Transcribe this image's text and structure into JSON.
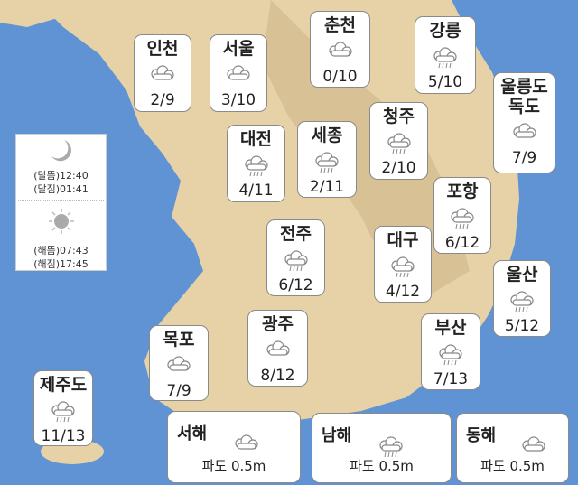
{
  "colors": {
    "sea": "#5f93d4",
    "land": "#e6d2a6",
    "land_dark": "#c9b183",
    "box": "#ffffff"
  },
  "astro": {
    "moon_icon": "crescent-moon-icon",
    "moonrise": "(달뜸)12:40",
    "moonset": "(달짐)01:41",
    "sun_icon": "sun-icon",
    "sunrise": "(해뜸)07:43",
    "sunset": "(해짐)17:45"
  },
  "cities": [
    {
      "name": "인천",
      "icon": "cloudy",
      "temp": "2/9"
    },
    {
      "name": "서울",
      "icon": "cloudy",
      "temp": "3/10"
    },
    {
      "name": "춘천",
      "icon": "cloudy",
      "temp": "0/10"
    },
    {
      "name": "강릉",
      "icon": "rain",
      "temp": "5/10"
    },
    {
      "name": "울릉도\n독도",
      "icon": "cloudy",
      "temp": "7/9"
    },
    {
      "name": "대전",
      "icon": "rain",
      "temp": "4/11"
    },
    {
      "name": "세종",
      "icon": "rain",
      "temp": "2/11"
    },
    {
      "name": "청주",
      "icon": "rain",
      "temp": "2/10"
    },
    {
      "name": "포항",
      "icon": "rain",
      "temp": "6/12"
    },
    {
      "name": "전주",
      "icon": "rain",
      "temp": "6/12"
    },
    {
      "name": "대구",
      "icon": "rain",
      "temp": "4/12"
    },
    {
      "name": "울산",
      "icon": "rain",
      "temp": "5/12"
    },
    {
      "name": "광주",
      "icon": "cloudy",
      "temp": "8/12"
    },
    {
      "name": "부산",
      "icon": "rain",
      "temp": "7/13"
    },
    {
      "name": "목포",
      "icon": "cloudy",
      "temp": "7/9"
    },
    {
      "name": "제주도",
      "icon": "rain",
      "temp": "11/13"
    }
  ],
  "seas": [
    {
      "name": "서해",
      "icon": "cloudy",
      "wave": "파도 0.5m"
    },
    {
      "name": "남해",
      "icon": "rain",
      "wave": "파도 0.5m"
    },
    {
      "name": "동해",
      "icon": "cloudy",
      "wave": "파도 0.5m"
    }
  ]
}
